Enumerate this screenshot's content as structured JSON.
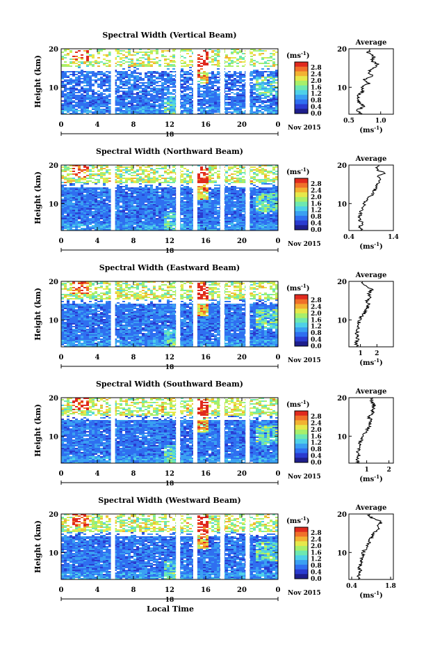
{
  "figure": {
    "xlabel_bottom": "Local Time",
    "date_label": "Nov 2015",
    "day_label": "18",
    "avg_title": "Average",
    "cbar_unit": "(ms",
    "cbar_unit_exp": "-1",
    "cbar_unit_close": ")",
    "avg_xlabel": "(ms",
    "avg_xlabel_exp": "-1",
    "avg_xlabel_close": ")"
  },
  "colors": {
    "scale": [
      "#1e1e8c",
      "#2a3bd0",
      "#2f6ff0",
      "#3aa0f2",
      "#4ed0e8",
      "#6ee8b0",
      "#a8ef6a",
      "#e6e84a",
      "#f2b232",
      "#f0702a",
      "#e02a1e"
    ],
    "background": "#ffffff"
  },
  "chart_data": [
    {
      "type": "heatmap",
      "title": "Spectral Width (Vertical Beam)",
      "ylabel": "Height (km)",
      "xlabel": "",
      "xlim": [
        0,
        24
      ],
      "ylim": [
        3,
        20
      ],
      "xticks": [
        "0",
        "4",
        "8",
        "12",
        "16",
        "20",
        "0"
      ],
      "yticks": [
        "10",
        "20"
      ],
      "colorbar": {
        "vmin": 0.0,
        "vmax": 2.8,
        "ticks": [
          "2.8",
          "2.4",
          "2.0",
          "1.6",
          "1.2",
          "0.8",
          "0.4",
          "0.0"
        ]
      },
      "gaps_local_time": [
        5.7,
        12.9,
        14.8,
        17.8,
        20.6
      ],
      "average": {
        "xlim": [
          0.5,
          1.2
        ],
        "xticks": [
          "0.5",
          "1.0"
        ],
        "heights": [
          3,
          4,
          5,
          6,
          7,
          8,
          9,
          10,
          11,
          12,
          13,
          14,
          15,
          16,
          17,
          18,
          19,
          20
        ],
        "values": [
          0.7,
          0.62,
          0.75,
          0.66,
          0.63,
          0.65,
          0.72,
          0.7,
          0.82,
          0.75,
          0.88,
          0.8,
          0.9,
          0.95,
          0.85,
          0.9,
          0.8,
          0.85
        ]
      }
    },
    {
      "type": "heatmap",
      "title": "Spectral Width (Northward Beam)",
      "ylabel": "Height (km)",
      "xlabel": "",
      "xlim": [
        0,
        24
      ],
      "ylim": [
        3,
        20
      ],
      "xticks": [
        "0",
        "4",
        "8",
        "12",
        "16",
        "20",
        "0"
      ],
      "yticks": [
        "10",
        "20"
      ],
      "colorbar": {
        "vmin": 0.0,
        "vmax": 2.8,
        "ticks": [
          "2.8",
          "2.4",
          "2.0",
          "1.6",
          "1.2",
          "0.8",
          "0.4",
          "0.0"
        ]
      },
      "gaps_local_time": [
        5.7,
        12.9,
        14.8,
        17.8,
        20.6
      ],
      "average": {
        "xlim": [
          0.4,
          1.4
        ],
        "xticks": [
          "0.4",
          "1.4"
        ],
        "heights": [
          3,
          4,
          5,
          6,
          7,
          8,
          9,
          10,
          11,
          12,
          13,
          14,
          15,
          16,
          17,
          18,
          19,
          20
        ],
        "values": [
          0.72,
          0.65,
          0.7,
          0.62,
          0.65,
          0.68,
          0.7,
          0.75,
          0.8,
          0.9,
          0.95,
          1.0,
          1.05,
          1.1,
          1.05,
          1.2,
          1.0,
          1.1
        ]
      }
    },
    {
      "type": "heatmap",
      "title": "Spectral Width (Eastward Beam)",
      "ylabel": "Height (km)",
      "xlabel": "",
      "xlim": [
        0,
        24
      ],
      "ylim": [
        3,
        20
      ],
      "xticks": [
        "0",
        "4",
        "8",
        "12",
        "16",
        "20",
        "0"
      ],
      "yticks": [
        "10",
        "20"
      ],
      "colorbar": {
        "vmin": 0.0,
        "vmax": 2.8,
        "ticks": [
          "2.8",
          "2.4",
          "2.0",
          "1.6",
          "1.2",
          "0.8",
          "0.4",
          "0.0"
        ]
      },
      "gaps_local_time": [
        5.7,
        12.9,
        14.8,
        17.8,
        20.6
      ],
      "average": {
        "xlim": [
          0.3,
          3.0
        ],
        "xticks": [
          "1",
          "2"
        ],
        "heights": [
          3,
          4,
          5,
          6,
          7,
          8,
          9,
          10,
          11,
          12,
          13,
          14,
          15,
          16,
          17,
          18,
          19,
          20
        ],
        "values": [
          0.8,
          0.75,
          0.85,
          0.78,
          0.8,
          0.85,
          0.9,
          0.95,
          1.1,
          1.3,
          1.4,
          1.5,
          1.4,
          1.6,
          1.5,
          1.7,
          1.2,
          1.1
        ]
      }
    },
    {
      "type": "heatmap",
      "title": "Spectral Width (Southward Beam)",
      "ylabel": "Height (km)",
      "xlabel": "",
      "xlim": [
        0,
        24
      ],
      "ylim": [
        3,
        20
      ],
      "xticks": [
        "0",
        "4",
        "8",
        "12",
        "16",
        "20",
        "0"
      ],
      "yticks": [
        "10",
        "20"
      ],
      "colorbar": {
        "vmin": 0.0,
        "vmax": 2.8,
        "ticks": [
          "2.8",
          "2.4",
          "2.0",
          "1.6",
          "1.2",
          "0.8",
          "0.4",
          "0.0"
        ]
      },
      "gaps_local_time": [
        5.7,
        12.9,
        14.8,
        17.8,
        20.6
      ],
      "average": {
        "xlim": [
          0.2,
          2.2
        ],
        "xticks": [
          "1",
          "2"
        ],
        "heights": [
          3,
          4,
          5,
          6,
          7,
          8,
          9,
          10,
          11,
          12,
          13,
          14,
          15,
          16,
          17,
          18,
          19,
          20
        ],
        "values": [
          0.6,
          0.55,
          0.65,
          0.62,
          0.68,
          0.7,
          0.75,
          0.85,
          0.95,
          1.05,
          1.15,
          1.2,
          1.1,
          1.25,
          1.3,
          1.35,
          1.2,
          1.25
        ]
      }
    },
    {
      "type": "heatmap",
      "title": "Spectral Width (Westward Beam)",
      "ylabel": "Height (km)",
      "xlabel": "Local Time",
      "xlim": [
        0,
        24
      ],
      "ylim": [
        3,
        20
      ],
      "xticks": [
        "0",
        "4",
        "8",
        "12",
        "16",
        "20",
        "0"
      ],
      "yticks": [
        "10",
        "20"
      ],
      "colorbar": {
        "vmin": 0.0,
        "vmax": 2.8,
        "ticks": [
          "2.8",
          "2.4",
          "2.0",
          "1.6",
          "1.2",
          "0.8",
          "0.4",
          "0.0"
        ]
      },
      "gaps_local_time": [
        5.7,
        12.9,
        14.8,
        17.8,
        20.6
      ],
      "average": {
        "xlim": [
          0.3,
          1.9
        ],
        "xticks": [
          "0.4",
          "1.8"
        ],
        "heights": [
          3,
          4,
          5,
          6,
          7,
          8,
          9,
          10,
          11,
          12,
          13,
          14,
          15,
          16,
          17,
          18,
          19,
          20
        ],
        "values": [
          0.7,
          0.65,
          0.72,
          0.68,
          0.7,
          0.75,
          0.78,
          0.8,
          0.9,
          1.0,
          1.05,
          1.1,
          1.2,
          1.4,
          1.3,
          1.5,
          1.1,
          1.0
        ]
      }
    }
  ]
}
